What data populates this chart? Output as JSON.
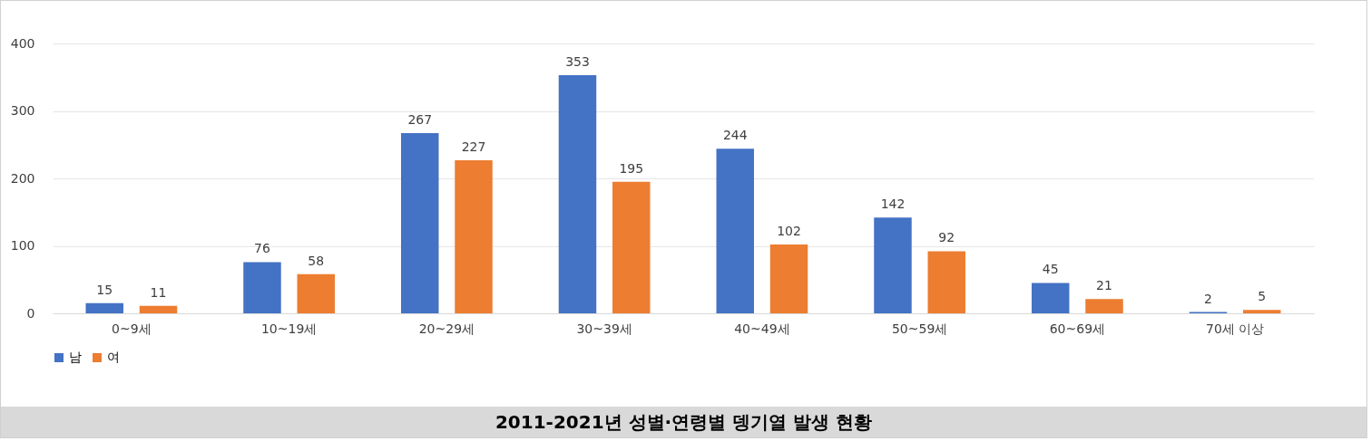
{
  "chart_data": {
    "type": "bar",
    "title": "2011-2021년 성별·연령별 뎅기열 발생 현황",
    "categories": [
      "0~9세",
      "10~19세",
      "20~29세",
      "30~39세",
      "40~49세",
      "50~59세",
      "60~69세",
      "70세 이상"
    ],
    "series": [
      {
        "name": "남",
        "color": "#4472c4",
        "values": [
          15,
          76,
          267,
          353,
          244,
          142,
          45,
          2
        ]
      },
      {
        "name": "여",
        "color": "#ed7d31",
        "values": [
          11,
          58,
          227,
          195,
          102,
          92,
          21,
          5
        ]
      }
    ],
    "ylim": [
      0,
      400
    ],
    "yticks": [
      0,
      100,
      200,
      300,
      400
    ],
    "grid": "y",
    "legend": "bottom",
    "data_labels": true
  }
}
